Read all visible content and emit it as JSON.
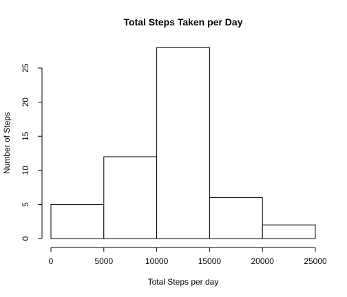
{
  "chart_data": {
    "type": "bar",
    "title": "Total Steps Taken per Day",
    "xlabel": "Total Steps per day",
    "ylabel": "Number of Steps",
    "bins": [
      {
        "start": 0,
        "end": 5000,
        "count": 5
      },
      {
        "start": 5000,
        "end": 10000,
        "count": 12
      },
      {
        "start": 10000,
        "end": 15000,
        "count": 28
      },
      {
        "start": 15000,
        "end": 20000,
        "count": 6
      },
      {
        "start": 20000,
        "end": 25000,
        "count": 2
      }
    ],
    "xticks": [
      0,
      5000,
      10000,
      15000,
      20000,
      25000
    ],
    "yticks": [
      0,
      5,
      10,
      15,
      20,
      25
    ],
    "xlim": [
      0,
      25000
    ],
    "ylim": [
      0,
      28
    ],
    "grid": false,
    "legend": "none"
  }
}
